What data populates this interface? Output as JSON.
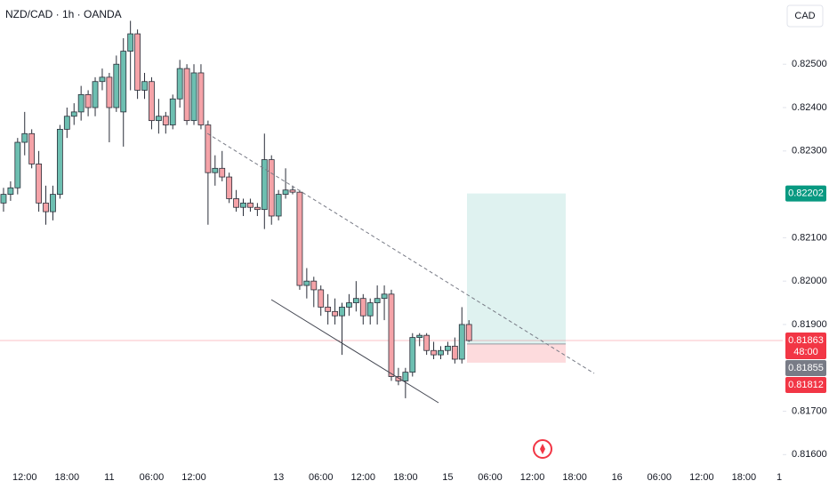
{
  "chart_data": {
    "type": "candlestick",
    "title": "NZD/CAD · 1h · OANDA",
    "currency": "CAD",
    "colors": {
      "up": "#6dbfb1",
      "down": "#f5a3a8",
      "border": "#2a2e39"
    },
    "open": [
      0.8218,
      0.822,
      0.82215,
      0.8232,
      0.8234,
      0.8227,
      0.8218,
      0.8216,
      0.822,
      0.8235,
      0.8238,
      0.8239,
      0.8243,
      0.824,
      0.8246,
      0.8247,
      0.824,
      0.8239,
      0.8253,
      0.8257,
      0.8244,
      0.8246,
      0.8237,
      0.8238,
      0.8236,
      0.8242,
      0.8249,
      0.8237,
      0.8248,
      0.8236,
      0.8225,
      0.8226,
      0.8224,
      0.8219,
      0.8217,
      0.8218,
      0.8217,
      0.82165,
      0.8228,
      0.8215,
      0.822,
      0.8221,
      0.82205,
      0.8199,
      0.82,
      0.8198,
      0.8194,
      0.8193,
      0.8192,
      0.8194,
      0.8195,
      0.8196,
      0.8192,
      0.8195,
      0.8196,
      0.8197,
      0.8178,
      0.8177,
      0.8179,
      0.8187,
      0.81875,
      0.8184,
      0.8183,
      0.8184,
      0.8185,
      0.8182,
      0.819
    ],
    "high": [
      0.82215,
      0.8223,
      0.8233,
      0.8239,
      0.8235,
      0.823,
      0.8222,
      0.8222,
      0.8236,
      0.824,
      0.8241,
      0.8245,
      0.8244,
      0.8247,
      0.8249,
      0.8248,
      0.8252,
      0.8256,
      0.826,
      0.8258,
      0.8248,
      0.8247,
      0.8242,
      0.8239,
      0.8243,
      0.8251,
      0.825,
      0.825,
      0.825,
      0.8237,
      0.8229,
      0.823,
      0.8225,
      0.8221,
      0.8219,
      0.8219,
      0.8218,
      0.8234,
      0.8229,
      0.8221,
      0.8226,
      0.8222,
      0.8221,
      0.8203,
      0.8201,
      0.8199,
      0.8197,
      0.8196,
      0.8195,
      0.8197,
      0.82,
      0.8197,
      0.8196,
      0.8199,
      0.8199,
      0.8198,
      0.818,
      0.818,
      0.8188,
      0.8188,
      0.8188,
      0.8186,
      0.8185,
      0.8186,
      0.8187,
      0.8194,
      0.8191
    ],
    "low": [
      0.8216,
      0.82185,
      0.822,
      0.8229,
      0.8226,
      0.8216,
      0.8213,
      0.8214,
      0.8219,
      0.8233,
      0.8236,
      0.8237,
      0.8238,
      0.8238,
      0.8244,
      0.8232,
      0.8239,
      0.8231,
      0.8244,
      0.8242,
      0.8242,
      0.8235,
      0.8234,
      0.8234,
      0.8235,
      0.824,
      0.8236,
      0.8236,
      0.8235,
      0.8213,
      0.8222,
      0.8223,
      0.8218,
      0.8216,
      0.8215,
      0.8216,
      0.8215,
      0.8212,
      0.8213,
      0.8214,
      0.8219,
      0.822,
      0.8198,
      0.8196,
      0.8194,
      0.8192,
      0.819,
      0.819,
      0.8183,
      0.8192,
      0.8193,
      0.819,
      0.819,
      0.819,
      0.8191,
      0.8177,
      0.8176,
      0.8173,
      0.8178,
      0.8185,
      0.8183,
      0.8182,
      0.8182,
      0.8183,
      0.8181,
      0.8181,
      0.8186
    ],
    "close": [
      0.822,
      0.82215,
      0.8232,
      0.8234,
      0.8227,
      0.8218,
      0.8216,
      0.822,
      0.8235,
      0.8238,
      0.8239,
      0.8243,
      0.824,
      0.8246,
      0.8247,
      0.824,
      0.825,
      0.8253,
      0.8257,
      0.8244,
      0.8246,
      0.8237,
      0.8238,
      0.8236,
      0.8242,
      0.8249,
      0.8237,
      0.8248,
      0.8236,
      0.8225,
      0.8226,
      0.8224,
      0.8219,
      0.8217,
      0.8218,
      0.8217,
      0.82165,
      0.8228,
      0.8215,
      0.822,
      0.8221,
      0.82205,
      0.8199,
      0.82,
      0.8198,
      0.8194,
      0.8193,
      0.8192,
      0.8194,
      0.8195,
      0.8196,
      0.8192,
      0.8195,
      0.8196,
      0.8197,
      0.8178,
      0.8177,
      0.8179,
      0.8187,
      0.81875,
      0.8184,
      0.8183,
      0.8184,
      0.8185,
      0.8182,
      0.819,
      0.81863
    ],
    "xlim": [
      -0.5,
      110.5
    ],
    "xticks": [
      {
        "value": 3,
        "label": "12:00"
      },
      {
        "value": 9,
        "label": "18:00"
      },
      {
        "value": 15,
        "label": "11"
      },
      {
        "value": 21,
        "label": "06:00"
      },
      {
        "value": 27,
        "label": "12:00"
      },
      {
        "value": 39,
        "label": "13"
      },
      {
        "value": 45,
        "label": "06:00"
      },
      {
        "value": 51,
        "label": "12:00"
      },
      {
        "value": 57,
        "label": "18:00"
      },
      {
        "value": 63,
        "label": "15"
      },
      {
        "value": 69,
        "label": "06:00"
      },
      {
        "value": 75,
        "label": "12:00"
      },
      {
        "value": 81,
        "label": "18:00"
      },
      {
        "value": 87,
        "label": "16"
      },
      {
        "value": 93,
        "label": "06:00"
      },
      {
        "value": 99,
        "label": "12:00"
      },
      {
        "value": 105,
        "label": "18:00"
      },
      {
        "value": 110,
        "label": "1"
      }
    ],
    "ylim": [
      0.81572,
      0.82648
    ],
    "yticks": [
      {
        "value": 0.816,
        "label": "0.81600"
      },
      {
        "value": 0.817,
        "label": "0.81700"
      },
      {
        "value": 0.819,
        "label": "0.81900"
      },
      {
        "value": 0.82,
        "label": "0.82000"
      },
      {
        "value": 0.821,
        "label": "0.82100"
      },
      {
        "value": 0.823,
        "label": "0.82300"
      },
      {
        "value": 0.824,
        "label": "0.82400"
      },
      {
        "value": 0.825,
        "label": "0.82500"
      }
    ],
    "last_price": 0.81863,
    "countdown": "48:00",
    "position": {
      "target": 0.82202,
      "entry": 0.81855,
      "stop": 0.81812
    }
  }
}
